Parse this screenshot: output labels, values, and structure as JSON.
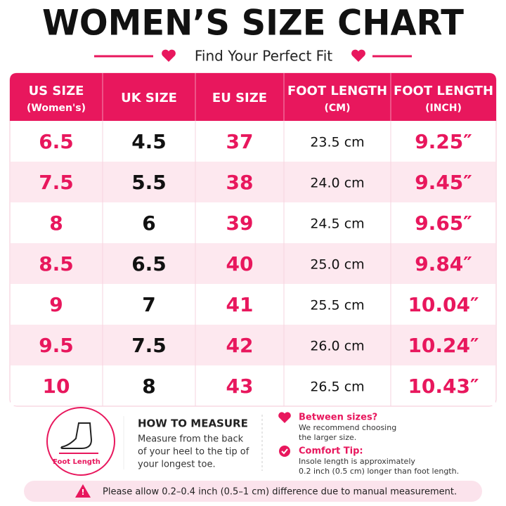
{
  "header": {
    "title": "WOMEN’S SIZE CHART",
    "subtitle": "Find Your Perfect Fit"
  },
  "table": {
    "columns": [
      [
        "US SIZE",
        "(Women's)"
      ],
      [
        "UK SIZE"
      ],
      [
        "EU SIZE"
      ],
      [
        "FOOT LENGTH",
        "(CM)"
      ],
      [
        "FOOT LENGTH",
        "(INCH)"
      ]
    ],
    "rows": [
      [
        "6.5",
        "4.5",
        "37",
        "23.5 cm",
        "9.25″"
      ],
      [
        "7.5",
        "5.5",
        "38",
        "24.0 cm",
        "9.45″"
      ],
      [
        "8",
        "6",
        "39",
        "24.5 cm",
        "9.65″"
      ],
      [
        "8.5",
        "6.5",
        "40",
        "25.0 cm",
        "9.84″"
      ],
      [
        "9",
        "7",
        "41",
        "25.5 cm",
        "10.04″"
      ],
      [
        "9.5",
        "7.5",
        "42",
        "26.0 cm",
        "10.24″"
      ],
      [
        "10",
        "8",
        "43",
        "26.5 cm",
        "10.43″"
      ]
    ]
  },
  "how_to_measure": {
    "icon_label": "Foot Length",
    "title": "HOW TO MEASURE",
    "lines": [
      "Measure from the back",
      "of your heel to the tip of",
      "your longest toe."
    ]
  },
  "tips": [
    {
      "title": "Between sizes?",
      "lines": [
        "We recommend choosing",
        "the larger size."
      ]
    },
    {
      "title": "Comfort Tip:",
      "lines": [
        "Insole length is approximately",
        "0.2 inch (0.5 cm) longer than foot length."
      ]
    }
  ],
  "footer": {
    "note": "Please allow 0.2–0.4 inch (0.5–1 cm) difference due to manual measurement."
  }
}
